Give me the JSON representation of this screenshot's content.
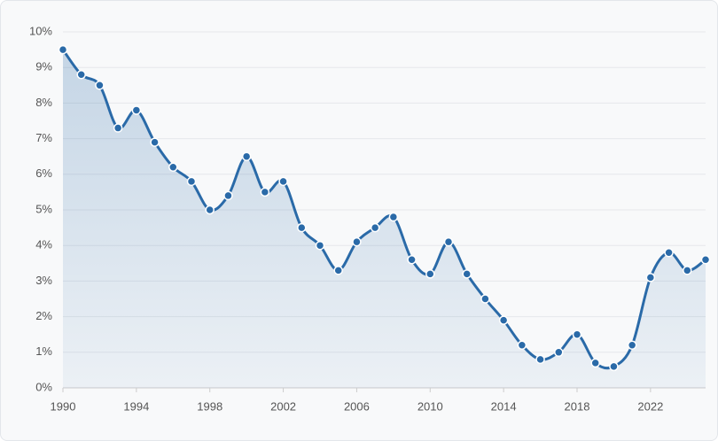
{
  "chart_data": {
    "type": "area",
    "x": [
      1990,
      1991,
      1992,
      1993,
      1994,
      1995,
      1996,
      1997,
      1998,
      1999,
      2000,
      2001,
      2002,
      2003,
      2004,
      2005,
      2006,
      2007,
      2008,
      2009,
      2010,
      2011,
      2012,
      2013,
      2014,
      2015,
      2016,
      2017,
      2018,
      2019,
      2020,
      2021,
      2022,
      2023,
      2024,
      2025
    ],
    "series": [
      {
        "color": "#2a6aa8",
        "values": [
          9.5,
          8.8,
          8.5,
          7.3,
          7.8,
          6.9,
          6.2,
          5.8,
          5.0,
          5.4,
          6.5,
          5.5,
          5.8,
          4.5,
          4.0,
          3.3,
          4.1,
          4.5,
          4.8,
          3.6,
          3.2,
          4.1,
          3.2,
          2.5,
          1.9,
          1.2,
          0.8,
          1.0,
          1.5,
          0.7,
          0.6,
          1.2,
          3.1,
          3.8,
          3.3,
          3.6
        ]
      }
    ],
    "xlim": [
      1990,
      2025
    ],
    "xticks": [
      1990,
      1994,
      1998,
      2002,
      2006,
      2010,
      2014,
      2018,
      2022
    ],
    "ylim": [
      0,
      10
    ],
    "yticks": [
      {
        "value": 0,
        "label": "0%"
      },
      {
        "value": 1,
        "label": "1%"
      },
      {
        "value": 2,
        "label": "2%"
      },
      {
        "value": 3,
        "label": "3%"
      },
      {
        "value": 4,
        "label": "4%"
      },
      {
        "value": 5,
        "label": "5%"
      },
      {
        "value": 6,
        "label": "6%"
      },
      {
        "value": 7,
        "label": "7%"
      },
      {
        "value": 8,
        "label": "8%"
      },
      {
        "value": 9,
        "label": "9%"
      },
      {
        "value": 10,
        "label": "10%"
      }
    ],
    "grid": true
  }
}
